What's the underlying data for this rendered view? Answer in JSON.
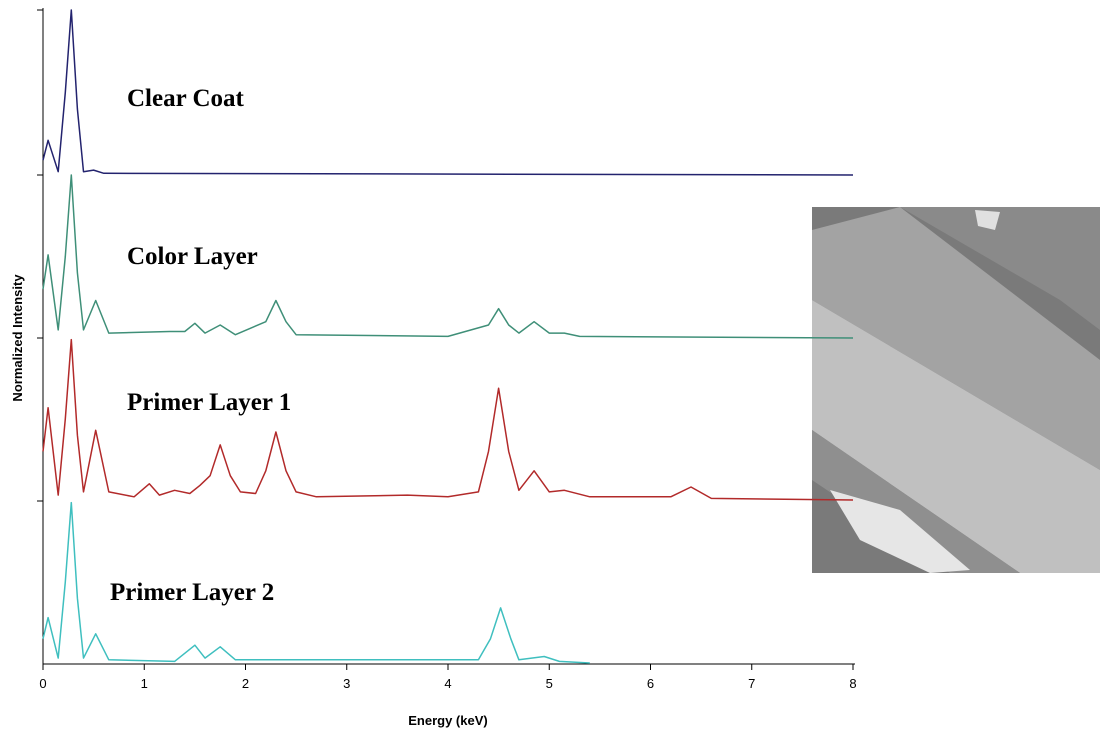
{
  "chart_data": {
    "type": "line",
    "x_label": "Energy (keV)",
    "y_label": "Normalized Intensity",
    "xlim": [
      0,
      8
    ],
    "xticks": [
      0,
      1,
      2,
      3,
      4,
      5,
      6,
      7,
      8
    ],
    "series": [
      {
        "name": "Clear Coat",
        "color": "#23236e",
        "x": [
          0,
          0.05,
          0.15,
          0.22,
          0.28,
          0.34,
          0.4,
          0.5,
          0.6,
          8
        ],
        "values": [
          0.09,
          0.21,
          0.02,
          0.5,
          1.0,
          0.4,
          0.02,
          0.03,
          0.01,
          0
        ]
      },
      {
        "name": "Color Layer",
        "color": "#3f8f78",
        "x": [
          0,
          0.05,
          0.15,
          0.22,
          0.28,
          0.34,
          0.4,
          0.52,
          0.65,
          1.25,
          1.4,
          1.5,
          1.6,
          1.75,
          1.9,
          2.2,
          2.3,
          2.4,
          2.5,
          4.0,
          4.4,
          4.5,
          4.6,
          4.7,
          4.85,
          5.0,
          5.15,
          5.3,
          8
        ],
        "values": [
          0.3,
          0.51,
          0.05,
          0.5,
          1.0,
          0.4,
          0.05,
          0.23,
          0.03,
          0.04,
          0.04,
          0.09,
          0.03,
          0.08,
          0.02,
          0.1,
          0.23,
          0.1,
          0.02,
          0.01,
          0.08,
          0.18,
          0.08,
          0.03,
          0.1,
          0.03,
          0.03,
          0.01,
          0
        ]
      },
      {
        "name": "Primer Layer 1",
        "color": "#b22a2a",
        "x": [
          0,
          0.05,
          0.15,
          0.22,
          0.28,
          0.34,
          0.4,
          0.52,
          0.65,
          0.9,
          1.05,
          1.15,
          1.3,
          1.45,
          1.55,
          1.65,
          1.75,
          1.85,
          1.95,
          2.1,
          2.2,
          2.3,
          2.4,
          2.5,
          2.7,
          3.6,
          4.0,
          4.3,
          4.4,
          4.5,
          4.6,
          4.7,
          4.85,
          5.0,
          5.15,
          5.4,
          6.2,
          6.4,
          6.6,
          8
        ],
        "values": [
          0.3,
          0.57,
          0.03,
          0.5,
          0.99,
          0.4,
          0.05,
          0.43,
          0.05,
          0.02,
          0.1,
          0.03,
          0.06,
          0.04,
          0.09,
          0.15,
          0.34,
          0.15,
          0.05,
          0.04,
          0.18,
          0.42,
          0.18,
          0.05,
          0.02,
          0.03,
          0.02,
          0.05,
          0.3,
          0.69,
          0.3,
          0.06,
          0.18,
          0.05,
          0.06,
          0.02,
          0.02,
          0.08,
          0.01,
          0
        ]
      },
      {
        "name": "Primer Layer 2",
        "color": "#3fbfbf",
        "x": [
          0,
          0.05,
          0.15,
          0.22,
          0.28,
          0.34,
          0.4,
          0.52,
          0.65,
          1.3,
          1.5,
          1.6,
          1.75,
          1.9,
          2.6,
          3.5,
          4.3,
          4.42,
          4.52,
          4.62,
          4.7,
          4.95,
          5.1,
          5.4
        ],
        "values": [
          0.15,
          0.28,
          0.03,
          0.5,
          0.99,
          0.4,
          0.03,
          0.18,
          0.02,
          0.01,
          0.11,
          0.03,
          0.1,
          0.02,
          0.02,
          0.02,
          0.02,
          0.15,
          0.34,
          0.15,
          0.02,
          0.04,
          0.01,
          0
        ]
      }
    ]
  }
}
